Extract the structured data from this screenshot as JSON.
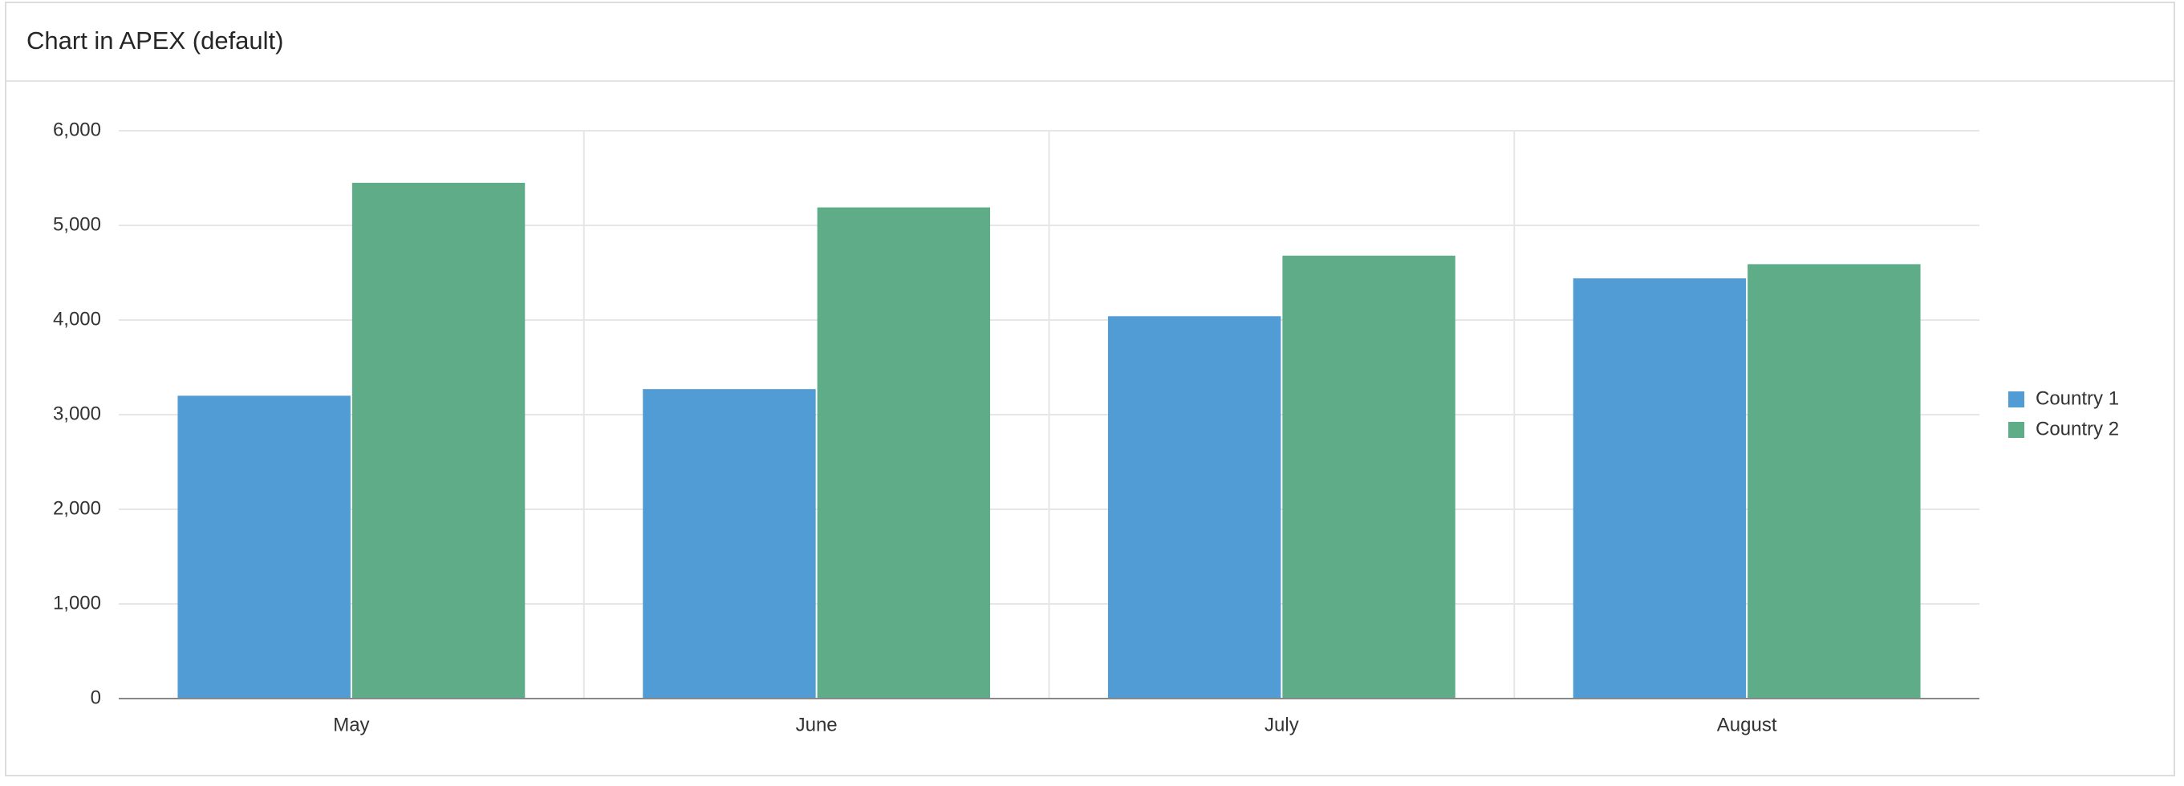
{
  "chart_data": {
    "type": "bar",
    "title": "Chart in APEX (default)",
    "categories": [
      "May",
      "June",
      "July",
      "August"
    ],
    "series": [
      {
        "name": "Country 1",
        "color": "#529cd6",
        "values": [
          3200,
          3270,
          4040,
          4440
        ]
      },
      {
        "name": "Country 2",
        "color": "#5fad88",
        "values": [
          5450,
          5190,
          4680,
          4590
        ]
      }
    ],
    "ylim": [
      0,
      6000
    ],
    "yticks": [
      0,
      {
        "value": 1000,
        "label": "1,000"
      },
      {
        "value": 2000,
        "label": "2,000"
      },
      {
        "value": 3000,
        "label": "3,000"
      },
      {
        "value": 4000,
        "label": "4,000"
      },
      {
        "value": 5000,
        "label": "5,000"
      },
      {
        "value": 6000,
        "label": "6,000"
      }
    ],
    "grid": true,
    "legend": "right"
  }
}
